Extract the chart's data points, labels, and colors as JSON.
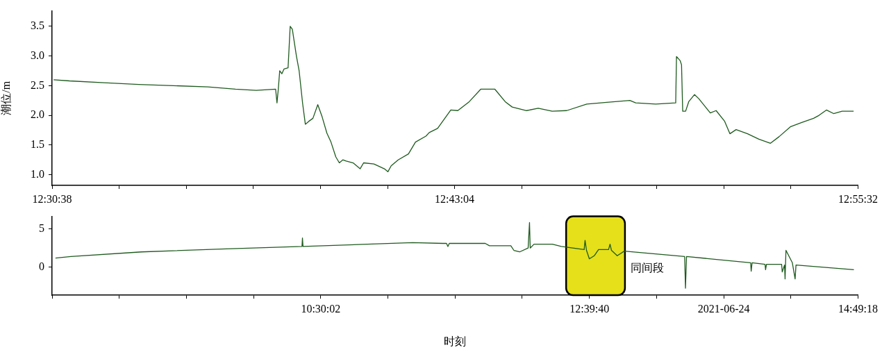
{
  "chart_data": [
    {
      "type": "line",
      "ylabel": "潮位/m",
      "xlim": [
        12.5106,
        12.9256
      ],
      "ylim": [
        0.82,
        3.76
      ],
      "xticks": [
        {
          "value": 12.5106,
          "label": "12:30:38"
        },
        {
          "value": 12.5452,
          "label": null
        },
        {
          "value": 12.5797,
          "label": null
        },
        {
          "value": 12.6143,
          "label": null
        },
        {
          "value": 12.6489,
          "label": null
        },
        {
          "value": 12.6835,
          "label": null
        },
        {
          "value": 12.7178,
          "label": "12:43:04"
        },
        {
          "value": 12.7526,
          "label": null
        },
        {
          "value": 12.7872,
          "label": null
        },
        {
          "value": 12.8218,
          "label": null
        },
        {
          "value": 12.8564,
          "label": null
        },
        {
          "value": 12.891,
          "label": null
        },
        {
          "value": 12.9256,
          "label": "12:55:32"
        }
      ],
      "yticks": [
        {
          "value": 1,
          "label": "1.0"
        },
        1.5,
        {
          "value": 2,
          "label": "2.0"
        },
        2.5,
        {
          "value": 3,
          "label": "3.0"
        },
        3.5
      ],
      "grid": false,
      "series": [
        {
          "color": "#1e5a1e",
          "x": [
            12.5114,
            12.5196,
            12.5374,
            12.5552,
            12.573,
            12.5908,
            12.605,
            12.6157,
            12.6257,
            12.6264,
            12.6271,
            12.6278,
            12.6289,
            12.63,
            12.6321,
            12.6332,
            12.6343,
            12.6364,
            12.6378,
            12.6396,
            12.641,
            12.6428,
            12.6449,
            12.6474,
            12.6496,
            12.6521,
            12.6542,
            12.6567,
            12.6585,
            12.6603,
            12.662,
            12.6656,
            12.6692,
            12.671,
            12.6763,
            12.6817,
            12.6835,
            12.6852,
            12.6888,
            12.6941,
            12.6977,
            12.7031,
            12.7048,
            12.7091,
            12.7159,
            12.7195,
            12.7254,
            12.7313,
            12.7386,
            12.7439,
            12.7475,
            12.7549,
            12.7609,
            12.7681,
            12.7756,
            12.7859,
            12.7962,
            12.8081,
            12.8111,
            12.8214,
            12.8317,
            12.8321,
            12.834,
            12.8347,
            12.8353,
            12.8368,
            12.8384,
            12.8414,
            12.8436,
            12.8495,
            12.8525,
            12.8569,
            12.8596,
            12.8628,
            12.8687,
            12.8745,
            12.8805,
            12.8849,
            12.8909,
            12.8966,
            12.9027,
            12.9055,
            12.9093,
            12.913,
            12.9174,
            12.9233
          ],
          "values": [
            2.6,
            2.58,
            2.55,
            2.52,
            2.5,
            2.48,
            2.44,
            2.42,
            2.44,
            2.21,
            2.45,
            2.75,
            2.7,
            2.78,
            2.8,
            3.5,
            3.45,
            3.0,
            2.75,
            2.2,
            1.85,
            1.9,
            1.95,
            2.18,
            1.98,
            1.7,
            1.55,
            1.3,
            1.2,
            1.25,
            1.23,
            1.2,
            1.1,
            1.2,
            1.18,
            1.1,
            1.05,
            1.15,
            1.25,
            1.35,
            1.55,
            1.65,
            1.71,
            1.78,
            2.09,
            2.08,
            2.23,
            2.44,
            2.44,
            2.23,
            2.14,
            2.08,
            2.12,
            2.07,
            2.08,
            2.19,
            2.22,
            2.25,
            2.21,
            2.19,
            2.21,
            2.99,
            2.92,
            2.85,
            2.07,
            2.07,
            2.23,
            2.35,
            2.28,
            2.04,
            2.08,
            1.9,
            1.69,
            1.76,
            1.69,
            1.6,
            1.53,
            1.64,
            1.81,
            1.88,
            1.95,
            2.0,
            2.09,
            2.03,
            2.07,
            2.07
          ]
        }
      ]
    },
    {
      "type": "line",
      "xlabel": "时刻",
      "xlim": [
        8.34,
        14.8217
      ],
      "ylim": [
        -3.6,
        6.6
      ],
      "xticks": [
        {
          "value": 8.34,
          "label": null
        },
        {
          "value": 8.8801,
          "label": null
        },
        {
          "value": 9.4203,
          "label": null
        },
        {
          "value": 9.9604,
          "label": null
        },
        {
          "value": 10.5006,
          "label": "10:30:02"
        },
        {
          "value": 11.0407,
          "label": null
        },
        {
          "value": 11.5808,
          "label": null
        },
        {
          "value": 12.121,
          "label": null
        },
        {
          "value": 12.6611,
          "label": "12:39:40"
        },
        {
          "value": 13.2013,
          "label": null
        },
        {
          "value": 13.7414,
          "label": "2021-06-24"
        },
        {
          "value": 14.2815,
          "label": null
        },
        {
          "value": 14.8217,
          "label": "14:49:18"
        }
      ],
      "yticks": [
        0,
        5
      ],
      "grid": false,
      "bands": [
        {
          "axis": "x",
          "from": 12.474,
          "to": 12.947,
          "label": "同间段",
          "color": "#e5e01a"
        }
      ],
      "series": [
        {
          "color": "#1e5a1e",
          "x": [
            8.3673,
            8.4918,
            9.0592,
            9.7405,
            10.3496,
            10.3535,
            10.3579,
            10.8757,
            11.2395,
            11.4842,
            11.512,
            11.5231,
            11.5343,
            11.8235,
            11.8569,
            12.0293,
            12.0537,
            12.0999,
            12.1683,
            12.1794,
            12.185,
            12.2156,
            12.363,
            12.4353,
            12.6188,
            12.6261,
            12.6377,
            12.6606,
            12.7,
            12.7345,
            12.8152,
            12.8269,
            12.8385,
            12.8847,
            12.9414,
            13.427,
            13.4337,
            13.442,
            13.9576,
            13.9621,
            13.9693,
            14.0733,
            14.0778,
            14.085,
            14.2068,
            14.2118,
            14.2302,
            14.2346,
            14.2418,
            14.293,
            14.3153,
            14.3225,
            14.788
          ],
          "values": [
            1.2,
            1.4,
            2.0,
            2.4,
            2.7,
            3.8,
            2.7,
            3.0,
            3.2,
            3.1,
            3.1,
            2.7,
            3.1,
            3.1,
            2.8,
            2.8,
            2.2,
            2.0,
            2.5,
            5.8,
            2.5,
            3.0,
            3.0,
            2.7,
            2.3,
            3.5,
            2.2,
            1.1,
            1.5,
            2.3,
            2.3,
            3.0,
            2.2,
            1.5,
            2.1,
            1.4,
            -2.7,
            1.4,
            0.6,
            -0.5,
            0.6,
            0.4,
            -0.3,
            0.4,
            0.4,
            -0.6,
            0.3,
            -1.5,
            2.2,
            0.6,
            -1.5,
            0.3,
            -0.3
          ]
        }
      ]
    }
  ]
}
